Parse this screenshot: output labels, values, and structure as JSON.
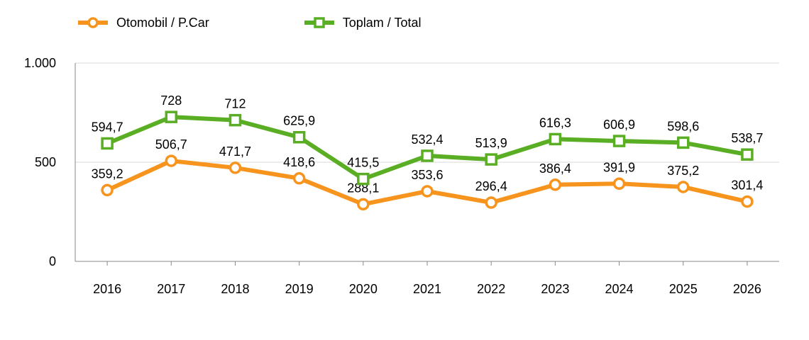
{
  "chart_data": {
    "type": "line",
    "categories": [
      "2016",
      "2017",
      "2018",
      "2019",
      "2020",
      "2021",
      "2022",
      "2023",
      "2024",
      "2025",
      "2026"
    ],
    "series": [
      {
        "name": "Otomobil / P.Car",
        "color": "#F7941D",
        "marker": "circle",
        "values": [
          359.2,
          506.7,
          471.7,
          418.6,
          288.1,
          353.6,
          296.4,
          386.4,
          391.9,
          375.2,
          301.4
        ],
        "labels": [
          "359,2",
          "506,7",
          "471,7",
          "418,6",
          "288,1",
          "353,6",
          "296,4",
          "386,4",
          "391,9",
          "375,2",
          "301,4"
        ]
      },
      {
        "name": "Toplam / Total",
        "color": "#5AAE24",
        "marker": "square",
        "values": [
          594.7,
          728,
          712,
          625.9,
          415.5,
          532.4,
          513.9,
          616.3,
          606.9,
          598.6,
          538.7
        ],
        "labels": [
          "594,7",
          "728",
          "712",
          "625,9",
          "415,5",
          "532,4",
          "513,9",
          "616,3",
          "606,9",
          "598,6",
          "538,7"
        ]
      }
    ],
    "yticks": [
      {
        "value": 0,
        "label": "0"
      },
      {
        "value": 500,
        "label": "500"
      },
      {
        "value": 1000,
        "label": "1.000"
      }
    ],
    "ylim": [
      0,
      1000
    ],
    "grid": true,
    "legend_position": "top-left"
  }
}
